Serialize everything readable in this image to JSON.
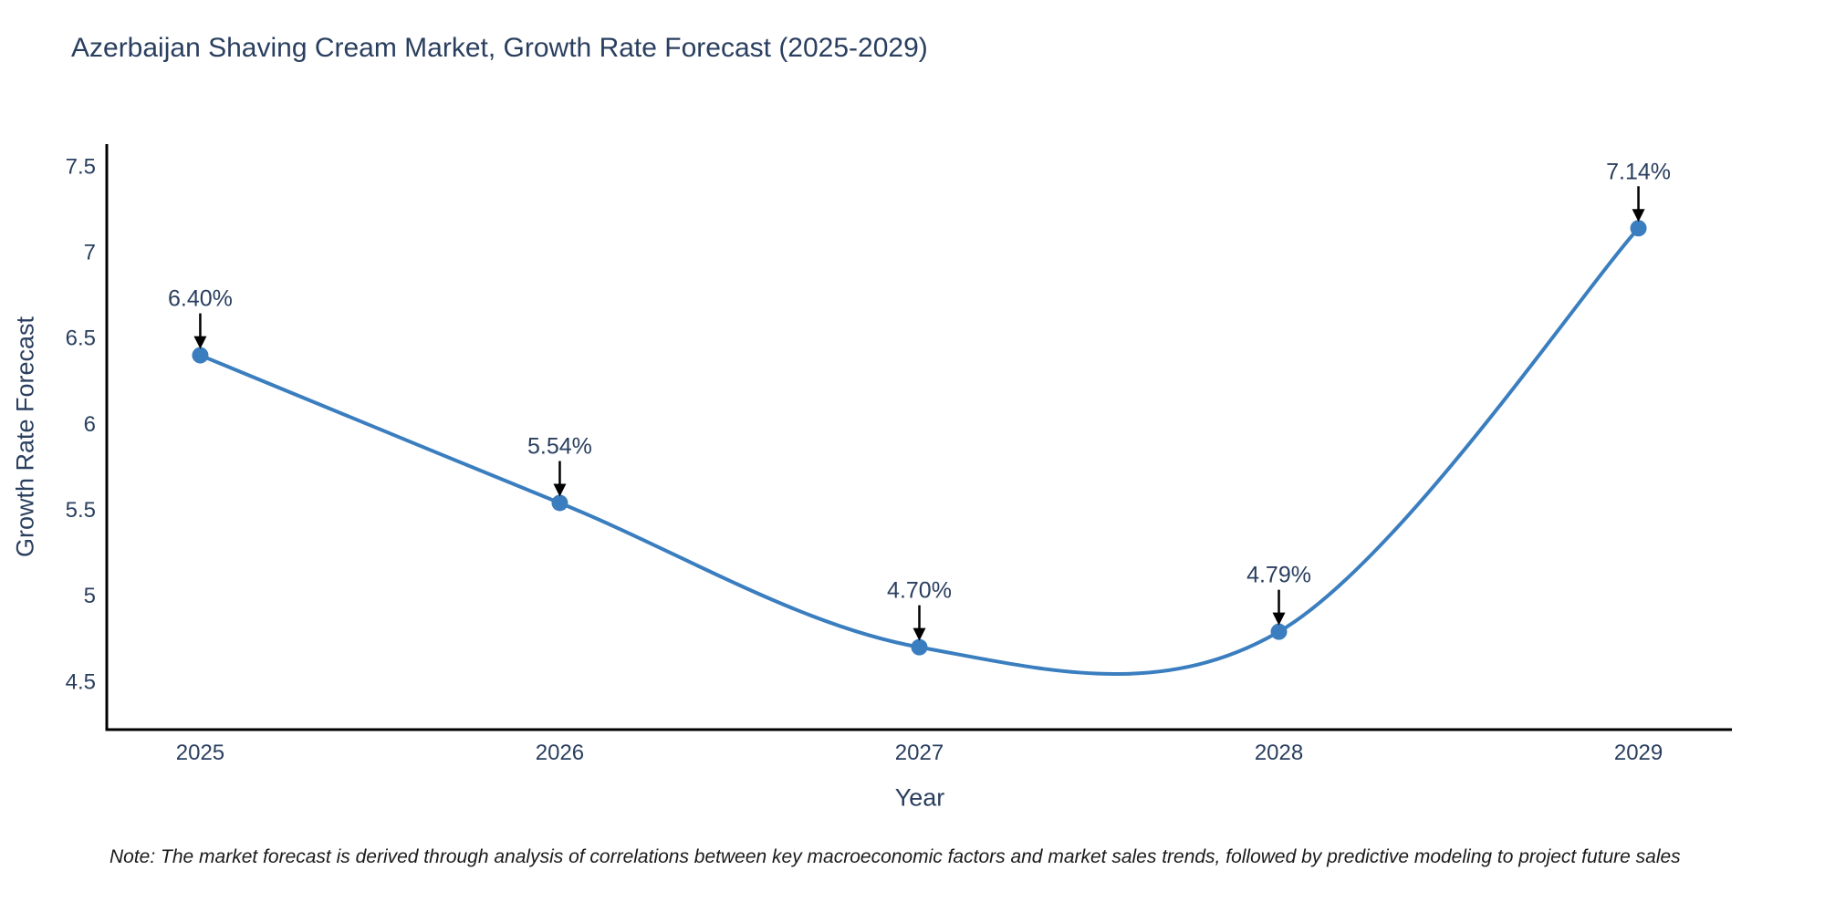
{
  "page": {
    "note": "Note: The market forecast is derived through analysis of correlations between key macroeconomic factors and market sales trends, followed by predictive modeling to project future sales"
  },
  "chart_data": {
    "type": "line",
    "title": "Azerbaijan Shaving Cream Market, Growth Rate Forecast (2025-2029)",
    "xlabel": "Year",
    "ylabel": "Growth Rate Forecast",
    "x": [
      2025,
      2026,
      2027,
      2028,
      2029
    ],
    "values": [
      6.4,
      5.54,
      4.7,
      4.79,
      7.14
    ],
    "point_labels": [
      "6.40%",
      "5.54%",
      "4.70%",
      "4.79%",
      "7.14%"
    ],
    "line_shape": "spline",
    "xtick_labels": [
      "2025",
      "2026",
      "2027",
      "2028",
      "2029"
    ],
    "ytick_values": [
      4.5,
      5,
      5.5,
      6,
      6.5,
      7,
      7.5
    ],
    "ytick_labels": [
      "4.5",
      "5",
      "5.5",
      "6",
      "6.5",
      "7",
      "7.5"
    ],
    "xlim": [
      2024.74,
      2029.26
    ],
    "ylim": [
      4.22,
      7.63
    ],
    "grid": false,
    "legend": "none",
    "colors": {
      "line": "#3a7ebf",
      "marker": "#3a7ebf",
      "arrow": "#000000",
      "axis": "#000000",
      "text": "#2a3f5f"
    }
  }
}
